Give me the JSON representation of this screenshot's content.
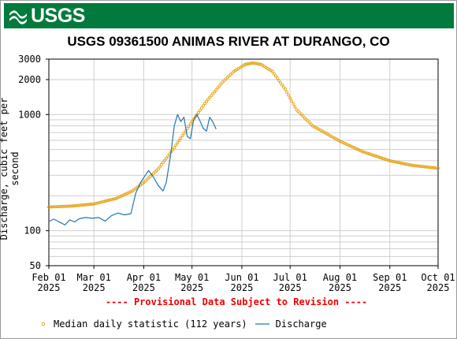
{
  "header": {
    "logo_text": "USGS",
    "banner_color": "#007a3d"
  },
  "chart_data": {
    "type": "line",
    "title": "USGS 09361500 ANIMAS RIVER AT DURANGO, CO",
    "ylabel": "Discharge, cubic feet per second",
    "xlabel": "",
    "y_scale": "log",
    "ylim": [
      50,
      3000
    ],
    "xlim": [
      "2025-02-01",
      "2025-10-01"
    ],
    "y_ticks": [
      {
        "value": 50,
        "label": "50"
      },
      {
        "value": 100,
        "label": "100"
      },
      {
        "value": 1000,
        "label": "1000"
      },
      {
        "value": 2000,
        "label": "2000"
      },
      {
        "value": 3000,
        "label": "3000"
      }
    ],
    "x_ticks": [
      {
        "date": "2025-02-01",
        "label_top": "Feb 01",
        "label_bottom": "2025"
      },
      {
        "date": "2025-03-01",
        "label_top": "Mar 01",
        "label_bottom": "2025"
      },
      {
        "date": "2025-04-01",
        "label_top": "Apr 01",
        "label_bottom": "2025"
      },
      {
        "date": "2025-05-01",
        "label_top": "May 01",
        "label_bottom": "2025"
      },
      {
        "date": "2025-06-01",
        "label_top": "Jun 01",
        "label_bottom": "2025"
      },
      {
        "date": "2025-07-01",
        "label_top": "Jul 01",
        "label_bottom": "2025"
      },
      {
        "date": "2025-08-01",
        "label_top": "Aug 01",
        "label_bottom": "2025"
      },
      {
        "date": "2025-09-01",
        "label_top": "Sep 01",
        "label_bottom": "2025"
      },
      {
        "date": "2025-10-01",
        "label_top": "Oct 01",
        "label_bottom": "2025"
      }
    ],
    "grid": true,
    "series": [
      {
        "name": "Median daily statistic (112 years)",
        "style": "points",
        "color": "#e8a317",
        "anchors": [
          {
            "x": "2025-02-01",
            "y": 160
          },
          {
            "x": "2025-02-15",
            "y": 163
          },
          {
            "x": "2025-03-01",
            "y": 170
          },
          {
            "x": "2025-03-15",
            "y": 190
          },
          {
            "x": "2025-03-25",
            "y": 220
          },
          {
            "x": "2025-04-01",
            "y": 260
          },
          {
            "x": "2025-04-10",
            "y": 340
          },
          {
            "x": "2025-04-20",
            "y": 520
          },
          {
            "x": "2025-05-01",
            "y": 870
          },
          {
            "x": "2025-05-10",
            "y": 1300
          },
          {
            "x": "2025-05-20",
            "y": 1900
          },
          {
            "x": "2025-05-27",
            "y": 2350
          },
          {
            "x": "2025-06-03",
            "y": 2700
          },
          {
            "x": "2025-06-08",
            "y": 2780
          },
          {
            "x": "2025-06-13",
            "y": 2700
          },
          {
            "x": "2025-06-20",
            "y": 2350
          },
          {
            "x": "2025-06-28",
            "y": 1650
          },
          {
            "x": "2025-07-05",
            "y": 1100
          },
          {
            "x": "2025-07-15",
            "y": 800
          },
          {
            "x": "2025-08-01",
            "y": 590
          },
          {
            "x": "2025-08-15",
            "y": 480
          },
          {
            "x": "2025-09-01",
            "y": 400
          },
          {
            "x": "2025-09-15",
            "y": 365
          },
          {
            "x": "2025-10-01",
            "y": 345
          }
        ]
      },
      {
        "name": "Discharge",
        "style": "line",
        "color": "#1f77b4",
        "anchors": [
          {
            "x": "2025-02-01",
            "y": 120
          },
          {
            "x": "2025-02-04",
            "y": 126
          },
          {
            "x": "2025-02-08",
            "y": 118
          },
          {
            "x": "2025-02-11",
            "y": 112
          },
          {
            "x": "2025-02-14",
            "y": 124
          },
          {
            "x": "2025-02-17",
            "y": 119
          },
          {
            "x": "2025-02-20",
            "y": 127
          },
          {
            "x": "2025-02-24",
            "y": 130
          },
          {
            "x": "2025-02-28",
            "y": 128
          },
          {
            "x": "2025-03-04",
            "y": 130
          },
          {
            "x": "2025-03-08",
            "y": 121
          },
          {
            "x": "2025-03-12",
            "y": 135
          },
          {
            "x": "2025-03-16",
            "y": 142
          },
          {
            "x": "2025-03-20",
            "y": 137
          },
          {
            "x": "2025-03-24",
            "y": 140
          },
          {
            "x": "2025-03-27",
            "y": 210
          },
          {
            "x": "2025-03-30",
            "y": 260
          },
          {
            "x": "2025-04-02",
            "y": 300
          },
          {
            "x": "2025-04-04",
            "y": 330
          },
          {
            "x": "2025-04-07",
            "y": 290
          },
          {
            "x": "2025-04-10",
            "y": 245
          },
          {
            "x": "2025-04-13",
            "y": 220
          },
          {
            "x": "2025-04-15",
            "y": 260
          },
          {
            "x": "2025-04-18",
            "y": 480
          },
          {
            "x": "2025-04-20",
            "y": 800
          },
          {
            "x": "2025-04-22",
            "y": 1000
          },
          {
            "x": "2025-04-24",
            "y": 870
          },
          {
            "x": "2025-04-26",
            "y": 950
          },
          {
            "x": "2025-04-28",
            "y": 650
          },
          {
            "x": "2025-04-30",
            "y": 620
          },
          {
            "x": "2025-05-02",
            "y": 900
          },
          {
            "x": "2025-05-04",
            "y": 1000
          },
          {
            "x": "2025-05-06",
            "y": 880
          },
          {
            "x": "2025-05-08",
            "y": 760
          },
          {
            "x": "2025-05-10",
            "y": 720
          },
          {
            "x": "2025-05-12",
            "y": 950
          },
          {
            "x": "2025-05-14",
            "y": 860
          },
          {
            "x": "2025-05-16",
            "y": 750
          }
        ]
      }
    ],
    "provisional_note": "---- Provisional Data Subject to Revision ----",
    "legend_position": "bottom"
  }
}
